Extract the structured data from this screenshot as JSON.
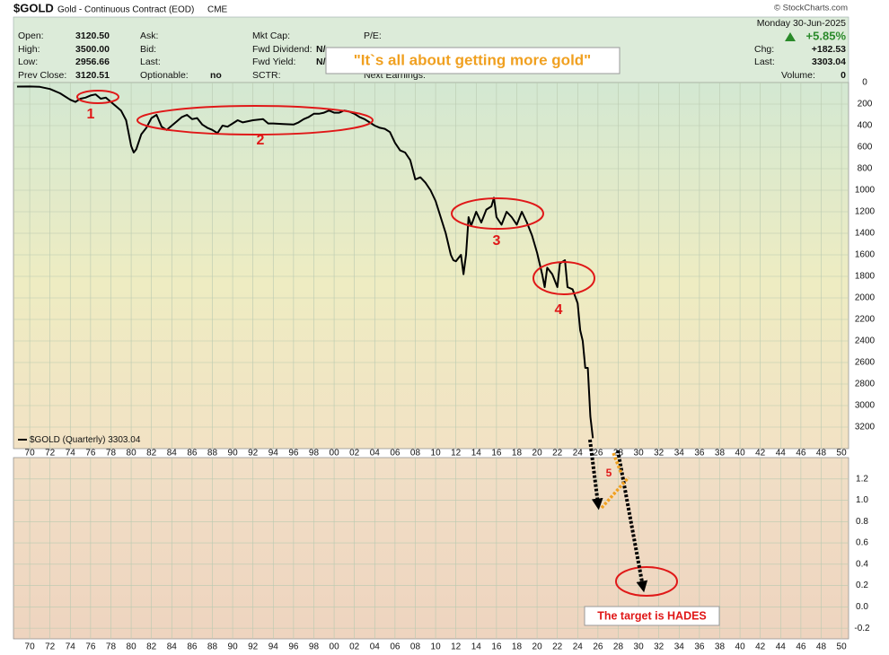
{
  "header": {
    "symbol": "$GOLD",
    "description": "Gold - Continuous Contract (EOD)",
    "exchange": "CME",
    "source": "© StockCharts.com",
    "date": "Monday  30-Jun-2025"
  },
  "quote": {
    "fields": [
      {
        "label": "Open:",
        "value": "3120.50"
      },
      {
        "label": "High:",
        "value": "3500.00"
      },
      {
        "label": "Low:",
        "value": "2956.66"
      },
      {
        "label": "Prev Close:",
        "value": "3120.51"
      },
      {
        "label": "Ask:"
      },
      {
        "label": "Bid:"
      },
      {
        "label": "Last:"
      },
      {
        "label": "Optionable:",
        "value": "no"
      },
      {
        "label": "Mkt Cap:"
      },
      {
        "label": "Fwd Dividend:",
        "value": "N/"
      },
      {
        "label": "Fwd Yield:",
        "value": "N/"
      },
      {
        "label": "SCTR:"
      },
      {
        "label": "P/E:"
      },
      {
        "label": "Next Earnings:"
      }
    ],
    "change": "+5.85%",
    "right": [
      {
        "label": "Chg:",
        "value": "+182.53"
      },
      {
        "label": "Last:",
        "value": "3303.04"
      },
      {
        "label": "Volume:",
        "value": "0"
      }
    ]
  },
  "chart_data": {
    "type": "line",
    "inverted": true,
    "grid": true,
    "xlim": [
      1968.4,
      2050.7
    ],
    "xticks": [
      {
        "value": 1970,
        "label": "70"
      },
      {
        "value": 1972,
        "label": "72"
      },
      {
        "value": 1974,
        "label": "74"
      },
      {
        "value": 1976,
        "label": "76"
      },
      {
        "value": 1978,
        "label": "78"
      },
      {
        "value": 1980,
        "label": "80"
      },
      {
        "value": 1982,
        "label": "82"
      },
      {
        "value": 1984,
        "label": "84"
      },
      {
        "value": 1986,
        "label": "86"
      },
      {
        "value": 1988,
        "label": "88"
      },
      {
        "value": 1990,
        "label": "90"
      },
      {
        "value": 1992,
        "label": "92"
      },
      {
        "value": 1994,
        "label": "94"
      },
      {
        "value": 1996,
        "label": "96"
      },
      {
        "value": 1998,
        "label": "98"
      },
      {
        "value": 2000,
        "label": "00"
      },
      {
        "value": 2002,
        "label": "02"
      },
      {
        "value": 2004,
        "label": "04"
      },
      {
        "value": 2006,
        "label": "06"
      },
      {
        "value": 2008,
        "label": "08"
      },
      {
        "value": 2010,
        "label": "10"
      },
      {
        "value": 2012,
        "label": "12"
      },
      {
        "value": 2014,
        "label": "14"
      },
      {
        "value": 2016,
        "label": "16"
      },
      {
        "value": 2018,
        "label": "18"
      },
      {
        "value": 2020,
        "label": "20"
      },
      {
        "value": 2022,
        "label": "22"
      },
      {
        "value": 2024,
        "label": "24"
      },
      {
        "value": 2026,
        "label": "26"
      },
      {
        "value": 2028,
        "label": "28"
      },
      {
        "value": 2030,
        "label": "30"
      },
      {
        "value": 2032,
        "label": "32"
      },
      {
        "value": 2034,
        "label": "34"
      },
      {
        "value": 2036,
        "label": "36"
      },
      {
        "value": 2038,
        "label": "38"
      },
      {
        "value": 2040,
        "label": "40"
      },
      {
        "value": 2042,
        "label": "42"
      },
      {
        "value": 2044,
        "label": "44"
      },
      {
        "value": 2046,
        "label": "46"
      },
      {
        "value": 2048,
        "label": "48"
      },
      {
        "value": 2050,
        "label": "50"
      }
    ],
    "ylim": [
      0,
      3400
    ],
    "yticks": [
      0,
      200,
      400,
      600,
      800,
      1000,
      1200,
      1400,
      1600,
      1800,
      2000,
      2200,
      2400,
      2600,
      2800,
      3000,
      3200
    ],
    "x": [
      1968.75,
      1970,
      1971,
      1972,
      1973,
      1974,
      1974.5,
      1975,
      1975.5,
      1976,
      1976.5,
      1977,
      1977.5,
      1978,
      1978.5,
      1979,
      1979.5,
      1980,
      1980.25,
      1980.5,
      1981,
      1981.5,
      1982,
      1982.5,
      1983,
      1983.5,
      1984,
      1984.5,
      1985,
      1985.5,
      1986,
      1986.5,
      1987,
      1987.5,
      1988,
      1988.5,
      1989,
      1989.5,
      1990,
      1990.5,
      1991,
      1992,
      1993,
      1993.5,
      1994,
      1995,
      1996,
      1996.5,
      1997,
      1997.5,
      1998,
      1998.5,
      1999,
      1999.5,
      2000,
      2000.5,
      2001,
      2001.5,
      2002,
      2002.5,
      2003,
      2003.5,
      2004,
      2004.5,
      2005,
      2005.5,
      2006,
      2006.5,
      2007,
      2007.5,
      2008,
      2008.5,
      2009,
      2009.5,
      2010,
      2010.5,
      2011,
      2011.5,
      2011.75,
      2012,
      2012.5,
      2012.75,
      2013,
      2013.25,
      2013.5,
      2014,
      2014.5,
      2015,
      2015.5,
      2015.75,
      2016,
      2016.5,
      2017,
      2017.5,
      2018,
      2018.5,
      2019,
      2019.5,
      2020,
      2020.5,
      2020.75,
      2021,
      2021.5,
      2022,
      2022.25,
      2022.75,
      2023,
      2023.5,
      2024,
      2024.25,
      2024.5,
      2024.75,
      2025,
      2025.25,
      2025.5
    ],
    "series": [
      {
        "name": "$GOLD (Quarterly)",
        "color": "#000000",
        "values": [
          38,
          36,
          40,
          60,
          100,
          160,
          180,
          150,
          140,
          120,
          110,
          150,
          140,
          180,
          220,
          260,
          350,
          590,
          650,
          620,
          480,
          420,
          330,
          300,
          410,
          440,
          400,
          360,
          320,
          300,
          340,
          330,
          390,
          420,
          440,
          470,
          400,
          410,
          380,
          350,
          370,
          350,
          340,
          380,
          380,
          385,
          390,
          370,
          340,
          320,
          290,
          290,
          280,
          260,
          280,
          280,
          260,
          270,
          290,
          320,
          340,
          370,
          400,
          420,
          430,
          460,
          560,
          630,
          650,
          720,
          900,
          880,
          930,
          1000,
          1100,
          1250,
          1400,
          1600,
          1650,
          1660,
          1600,
          1780,
          1600,
          1250,
          1330,
          1200,
          1300,
          1180,
          1150,
          1070,
          1250,
          1320,
          1200,
          1250,
          1320,
          1200,
          1300,
          1420,
          1580,
          1780,
          1900,
          1720,
          1780,
          1900,
          1680,
          1650,
          1900,
          1920,
          2050,
          2300,
          2400,
          2650,
          2650,
          3100,
          3303
        ]
      }
    ],
    "legend_value": "3303.04",
    "lower_panel": {
      "ylim": [
        -0.3,
        1.4
      ],
      "yticks": [
        -0.2,
        {
          "value": 0,
          "label": "0.0"
        },
        0.2,
        0.4,
        0.6,
        0.8,
        {
          "value": 1,
          "label": "1.0"
        },
        1.2
      ]
    },
    "annotations": {
      "labels": [
        "1",
        "2",
        "3",
        "4",
        "5"
      ],
      "callout": "\"It`s all about getting more gold\"",
      "target": "The target is HADES"
    }
  }
}
